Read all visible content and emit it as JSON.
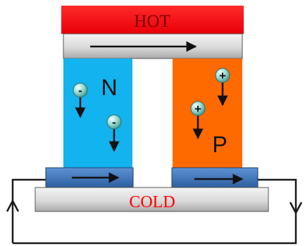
{
  "labels": {
    "hot": "HOT",
    "cold": "COLD",
    "n_type": "N",
    "p_type": "P"
  },
  "carriers": {
    "electron_symbol": "-",
    "hole_symbol": "+"
  },
  "colors": {
    "hot_plate": "#ff0d12",
    "hot_text": "#7a0000",
    "cold_text": "#ff0000",
    "n_leg": "#12b3ee",
    "p_leg": "#ff6a00",
    "metal_contact": "#3a76c0",
    "ceramic_plate": "#d7d7d7",
    "circuit": "#1a1a1a"
  },
  "icons": {
    "electron": "minus-sphere-icon",
    "hole": "plus-sphere-icon",
    "flow": "right-arrow-icon"
  }
}
